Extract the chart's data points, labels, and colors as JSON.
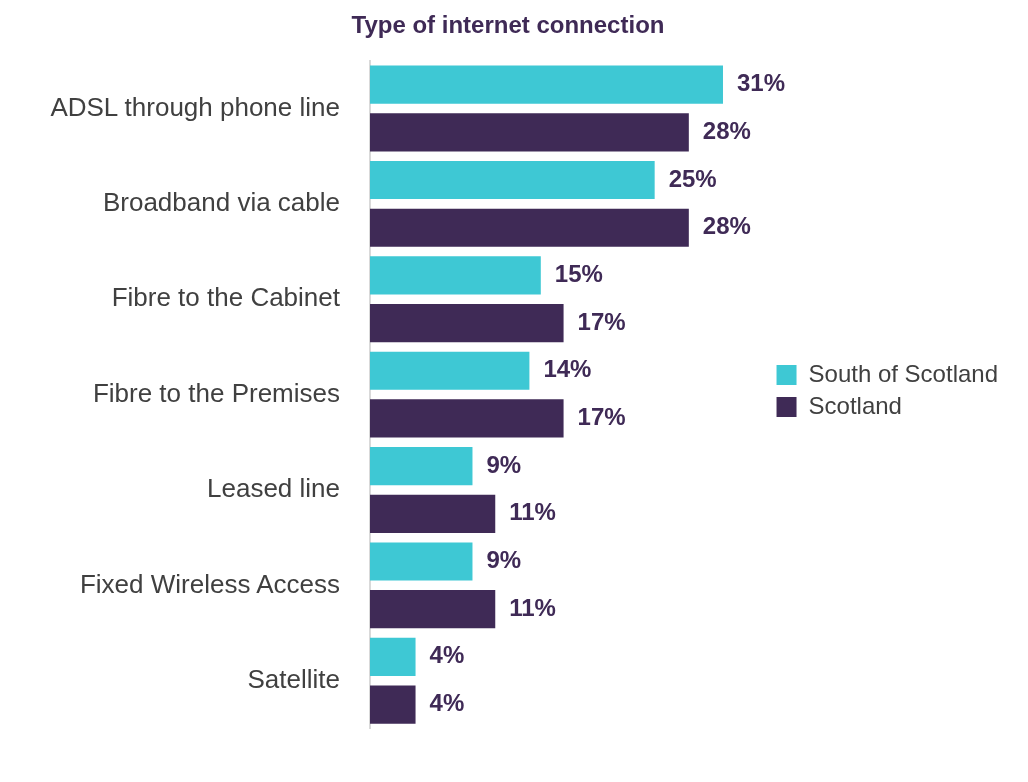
{
  "chart_data": {
    "type": "bar",
    "orientation": "horizontal",
    "title": "Type of internet connection",
    "categories": [
      "ADSL through phone line",
      "Broadband via cable",
      "Fibre to the Cabinet",
      "Fibre to the Premises",
      "Leased line",
      "Fixed Wireless Access",
      "Satellite"
    ],
    "series": [
      {
        "name": "South of Scotland",
        "color": "#3ec8d4",
        "values": [
          31,
          25,
          15,
          14,
          9,
          9,
          4
        ],
        "value_labels": [
          "31%",
          "25%",
          "15%",
          "14%",
          "9%",
          "9%",
          "4%"
        ]
      },
      {
        "name": "Scotland",
        "color": "#3f2a56",
        "values": [
          28,
          28,
          17,
          17,
          11,
          11,
          4
        ],
        "value_labels": [
          "28%",
          "28%",
          "17%",
          "17%",
          "11%",
          "11%",
          "4%"
        ]
      }
    ],
    "legend": "right"
  }
}
